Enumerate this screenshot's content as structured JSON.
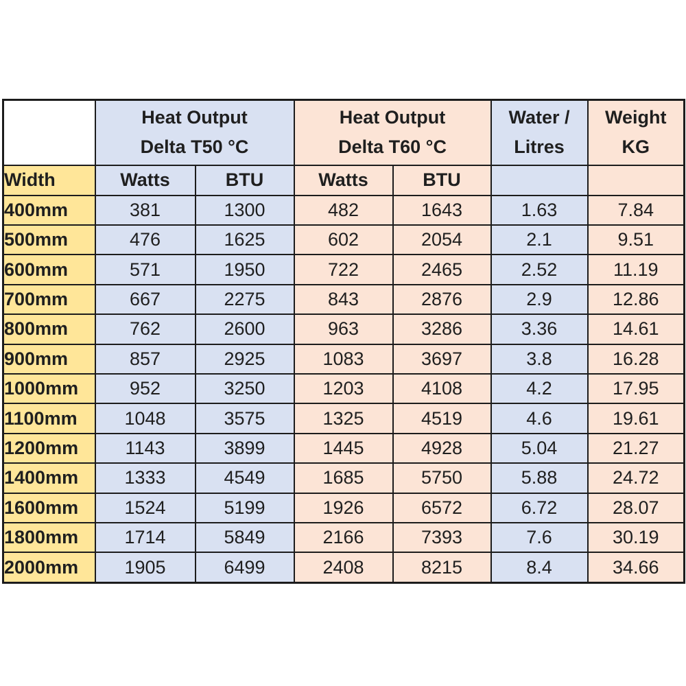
{
  "colors": {
    "header_blue": "#D9E1F2",
    "header_peach": "#FCE4D6",
    "width_yellow": "#FFE699",
    "border": "#1c1c1c",
    "text": "#1f1f1f",
    "page_background": "#ffffff"
  },
  "header": {
    "t50_line1": "Heat Output",
    "t50_line2": "Delta T50 °C",
    "t60_line1": "Heat Output",
    "t60_line2": "Delta T60 °C",
    "water_line1": "Water /",
    "water_line2": "Litres",
    "weight_line1": "Weight",
    "weight_line2": "KG",
    "width_label": "Width",
    "watts_label": "Watts",
    "btu_label": "BTU"
  },
  "chart_data": {
    "type": "table",
    "column_groups": [
      {
        "label": "Heat Output Delta T50 °C",
        "span": 2,
        "color": "#D9E1F2"
      },
      {
        "label": "Heat Output Delta T60 °C",
        "span": 2,
        "color": "#FCE4D6"
      },
      {
        "label": "Water / Litres",
        "span": 1,
        "color": "#D9E1F2"
      },
      {
        "label": "Weight KG",
        "span": 1,
        "color": "#FCE4D6"
      }
    ],
    "columns": [
      "Width",
      "Heat Output Delta T50 °C — Watts",
      "Heat Output Delta T50 °C — BTU",
      "Heat Output Delta T60 °C — Watts",
      "Heat Output Delta T60 °C — BTU",
      "Water / Litres",
      "Weight KG"
    ],
    "rows": [
      [
        "400mm",
        381,
        1300,
        482,
        1643,
        1.63,
        7.84
      ],
      [
        "500mm",
        476,
        1625,
        602,
        2054,
        2.1,
        9.51
      ],
      [
        "600mm",
        571,
        1950,
        722,
        2465,
        2.52,
        11.19
      ],
      [
        "700mm",
        667,
        2275,
        843,
        2876,
        2.9,
        12.86
      ],
      [
        "800mm",
        762,
        2600,
        963,
        3286,
        3.36,
        14.61
      ],
      [
        "900mm",
        857,
        2925,
        1083,
        3697,
        3.8,
        16.28
      ],
      [
        "1000mm",
        952,
        3250,
        1203,
        4108,
        4.2,
        17.95
      ],
      [
        "1100mm",
        1048,
        3575,
        1325,
        4519,
        4.6,
        19.61
      ],
      [
        "1200mm",
        1143,
        3899,
        1445,
        4928,
        5.04,
        21.27
      ],
      [
        "1400mm",
        1333,
        4549,
        1685,
        5750,
        5.88,
        24.72
      ],
      [
        "1600mm",
        1524,
        5199,
        1926,
        6572,
        6.72,
        28.07
      ],
      [
        "1800mm",
        1714,
        5849,
        2166,
        7393,
        7.6,
        30.19
      ],
      [
        "2000mm",
        1905,
        6499,
        2408,
        8215,
        8.4,
        34.66
      ]
    ]
  }
}
